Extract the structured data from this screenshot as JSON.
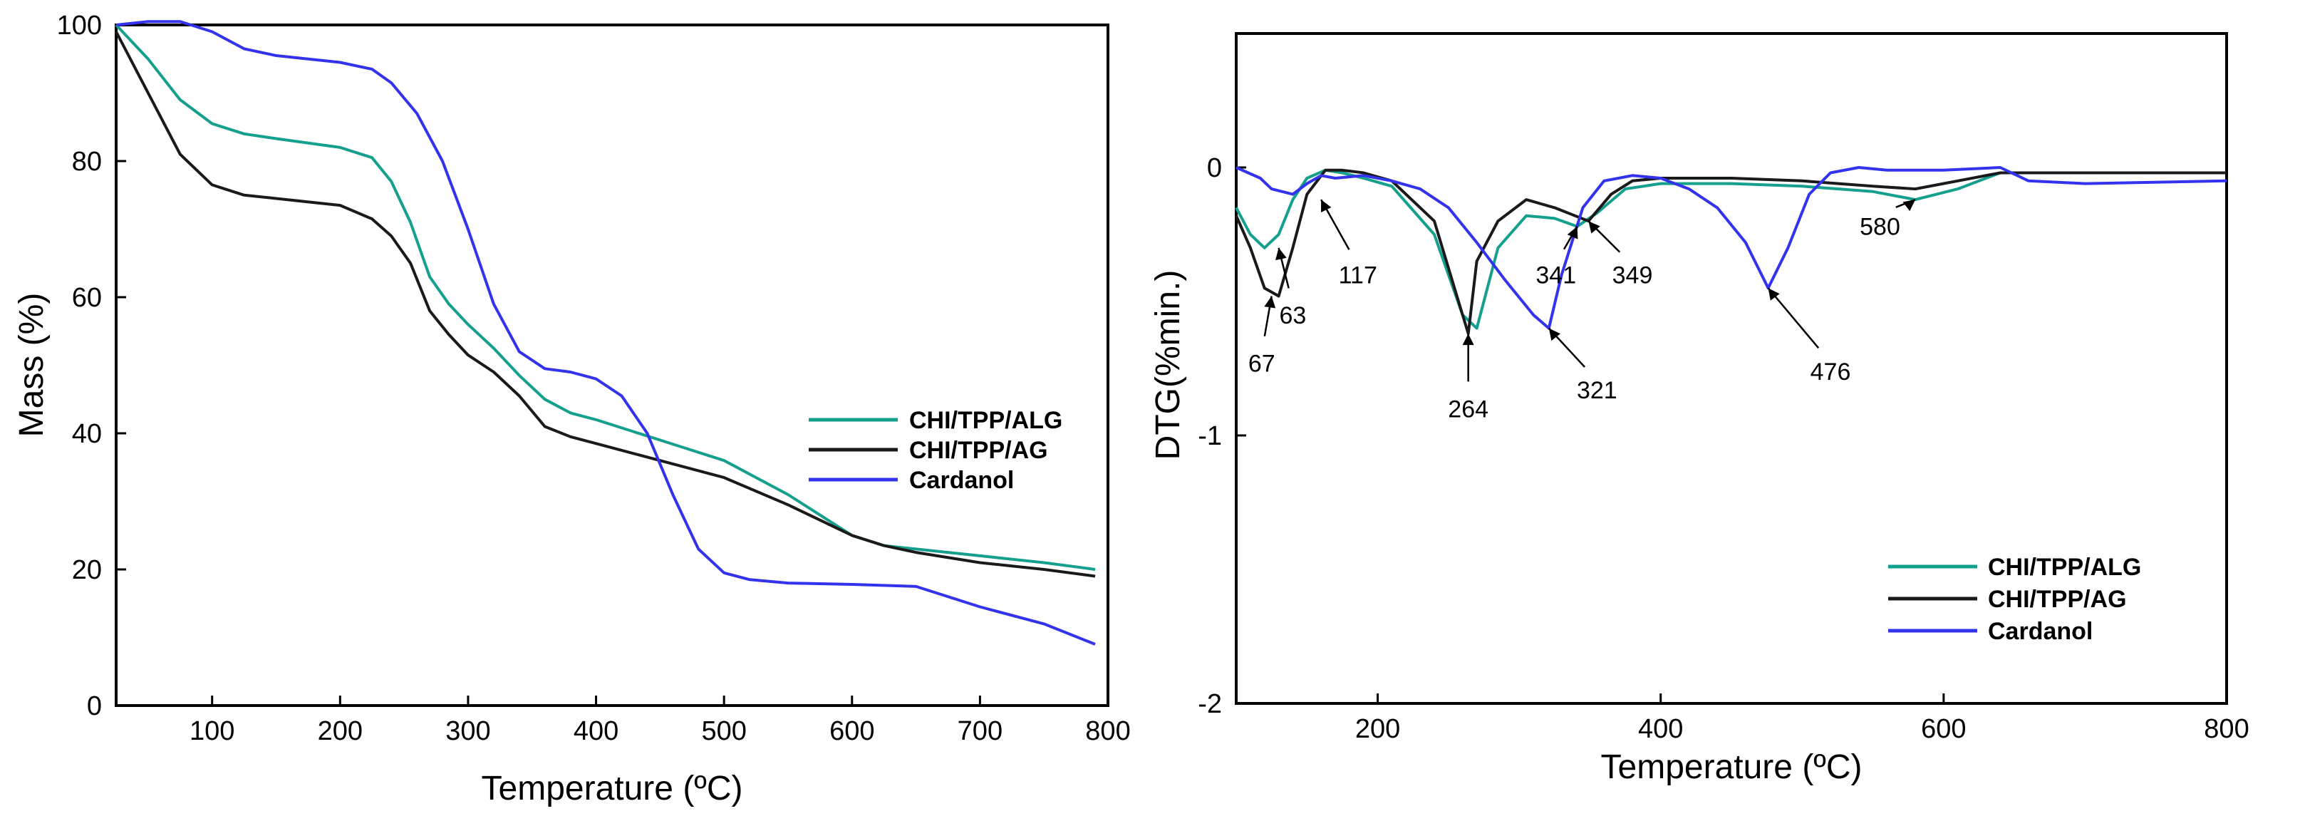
{
  "chart_data": [
    {
      "type": "line",
      "title": "",
      "xlabel": "Temperature (ºC)",
      "ylabel": "Mass (%)",
      "xlim": [
        25,
        800
      ],
      "ylim": [
        0,
        100
      ],
      "xticks": [
        100,
        200,
        300,
        400,
        500,
        600,
        700,
        800
      ],
      "yticks": [
        0,
        20,
        40,
        60,
        80,
        100
      ],
      "legend_position": "center-right",
      "series": [
        {
          "name": "CHI/TPP/ALG",
          "color": "#14a08c",
          "x": [
            25,
            50,
            75,
            100,
            125,
            150,
            200,
            225,
            240,
            255,
            270,
            285,
            300,
            320,
            340,
            360,
            380,
            400,
            450,
            500,
            550,
            600,
            625,
            650,
            700,
            750,
            790
          ],
          "y": [
            100,
            95,
            89,
            85.5,
            84,
            83.3,
            82,
            80.5,
            77,
            71,
            63,
            59,
            56,
            52.5,
            48.5,
            45,
            43,
            42,
            39,
            36,
            31,
            25,
            23.5,
            23,
            22,
            21,
            20
          ]
        },
        {
          "name": "CHI/TPP/AG",
          "color": "#1a1a1a",
          "x": [
            25,
            50,
            75,
            100,
            125,
            150,
            200,
            225,
            240,
            255,
            270,
            285,
            300,
            320,
            340,
            360,
            380,
            400,
            450,
            500,
            550,
            600,
            625,
            650,
            700,
            750,
            790
          ],
          "y": [
            99,
            90,
            81,
            76.5,
            75,
            74.5,
            73.5,
            71.5,
            69,
            65,
            58,
            54.5,
            51.5,
            49,
            45.5,
            41,
            39.5,
            38.5,
            36,
            33.5,
            29.5,
            25,
            23.5,
            22.5,
            21,
            20,
            19
          ]
        },
        {
          "name": "Cardanol",
          "color": "#3333ee",
          "x": [
            25,
            50,
            75,
            100,
            125,
            150,
            200,
            225,
            240,
            260,
            280,
            300,
            320,
            340,
            360,
            380,
            400,
            420,
            440,
            460,
            480,
            500,
            520,
            550,
            600,
            650,
            700,
            750,
            790
          ],
          "y": [
            100,
            100.5,
            100.5,
            99,
            96.5,
            95.5,
            94.5,
            93.5,
            91.5,
            87,
            80,
            70,
            59,
            52,
            49.5,
            49,
            48,
            45.5,
            40,
            31,
            23,
            19.5,
            18.5,
            18,
            17.8,
            17.5,
            14.5,
            12,
            9
          ]
        }
      ]
    },
    {
      "type": "line",
      "title": "",
      "xlabel": "Temperature (ºC)",
      "ylabel": "DTG(%min.)",
      "xlim": [
        100,
        800
      ],
      "ylim": [
        -2,
        0.5
      ],
      "xticks": [
        200,
        400,
        600,
        800
      ],
      "yticks": [
        0,
        -1,
        -2
      ],
      "y_tick_labels": [
        "0",
        "-1",
        "-2"
      ],
      "legend_position": "bottom-right",
      "series": [
        {
          "name": "CHI/TPP/ALG",
          "color": "#14a08c",
          "x": [
            100,
            110,
            120,
            130,
            140,
            150,
            163,
            175,
            190,
            210,
            240,
            260,
            270,
            285,
            305,
            325,
            341,
            355,
            375,
            400,
            450,
            500,
            550,
            580,
            610,
            640,
            700,
            800
          ],
          "y": [
            -0.15,
            -0.25,
            -0.3,
            -0.25,
            -0.12,
            -0.04,
            -0.01,
            -0.02,
            -0.04,
            -0.07,
            -0.25,
            -0.55,
            -0.6,
            -0.3,
            -0.18,
            -0.19,
            -0.22,
            -0.17,
            -0.08,
            -0.06,
            -0.06,
            -0.07,
            -0.09,
            -0.12,
            -0.08,
            -0.02,
            -0.02,
            -0.02
          ]
        },
        {
          "name": "CHI/TPP/AG",
          "color": "#1a1a1a",
          "x": [
            100,
            110,
            120,
            130,
            140,
            150,
            163,
            175,
            190,
            210,
            240,
            260,
            264,
            270,
            285,
            305,
            325,
            349,
            365,
            380,
            400,
            450,
            500,
            550,
            580,
            610,
            640,
            700,
            800
          ],
          "y": [
            -0.18,
            -0.3,
            -0.45,
            -0.48,
            -0.3,
            -0.1,
            -0.01,
            -0.01,
            -0.02,
            -0.05,
            -0.2,
            -0.55,
            -0.62,
            -0.35,
            -0.2,
            -0.12,
            -0.15,
            -0.2,
            -0.1,
            -0.05,
            -0.04,
            -0.04,
            -0.05,
            -0.07,
            -0.08,
            -0.05,
            -0.02,
            -0.02,
            -0.02
          ]
        },
        {
          "name": "Cardanol",
          "color": "#3333ee",
          "x": [
            100,
            117,
            125,
            140,
            150,
            160,
            170,
            190,
            210,
            230,
            250,
            270,
            290,
            310,
            321,
            330,
            345,
            360,
            380,
            400,
            420,
            440,
            460,
            476,
            490,
            505,
            520,
            540,
            560,
            600,
            640,
            660,
            700,
            800
          ],
          "y": [
            0,
            -0.04,
            -0.08,
            -0.1,
            -0.06,
            -0.03,
            -0.04,
            -0.03,
            -0.05,
            -0.08,
            -0.15,
            -0.28,
            -0.42,
            -0.55,
            -0.6,
            -0.4,
            -0.15,
            -0.05,
            -0.03,
            -0.04,
            -0.08,
            -0.15,
            -0.28,
            -0.45,
            -0.3,
            -0.1,
            -0.02,
            0,
            -0.01,
            -0.01,
            0,
            -0.05,
            -0.06,
            -0.05
          ]
        }
      ],
      "annotations": [
        {
          "label": "63",
          "x": 130,
          "y": -0.3,
          "text_x": 140,
          "text_y": -0.55
        },
        {
          "label": "67",
          "x": 125,
          "y": -0.48,
          "text_x": 118,
          "text_y": -0.73
        },
        {
          "label": "117",
          "x": 160,
          "y": -0.12,
          "text_x": 186,
          "text_y": -0.4
        },
        {
          "label": "264",
          "x": 264,
          "y": -0.62,
          "text_x": 264,
          "text_y": -0.9
        },
        {
          "label": "321",
          "x": 321,
          "y": -0.6,
          "text_x": 355,
          "text_y": -0.83
        },
        {
          "label": "341",
          "x": 341,
          "y": -0.22,
          "text_x": 326,
          "text_y": -0.4
        },
        {
          "label": "349",
          "x": 349,
          "y": -0.2,
          "text_x": 380,
          "text_y": -0.4
        },
        {
          "label": "476",
          "x": 476,
          "y": -0.45,
          "text_x": 520,
          "text_y": -0.76
        },
        {
          "label": "580",
          "x": 580,
          "y": -0.12,
          "text_x": 555,
          "text_y": -0.22
        }
      ]
    }
  ]
}
